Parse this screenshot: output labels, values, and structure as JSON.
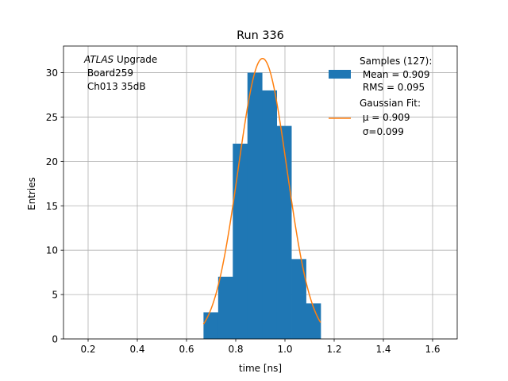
{
  "chart_data": {
    "type": "bar",
    "title": "Run 336",
    "xlabel": "time [ns]",
    "ylabel": "Entries",
    "xlim": [
      0.1,
      1.7
    ],
    "ylim": [
      0,
      33
    ],
    "grid": true,
    "xticks": [
      0.2,
      0.4,
      0.6,
      0.8,
      1.0,
      1.2,
      1.4,
      1.6
    ],
    "xtick_labels": [
      "0.2",
      "0.4",
      "0.6",
      "0.8",
      "1.0",
      "1.2",
      "1.4",
      "1.6"
    ],
    "yticks": [
      0,
      5,
      10,
      15,
      20,
      25,
      30
    ],
    "ytick_labels": [
      "0",
      "5",
      "10",
      "15",
      "20",
      "25",
      "30"
    ],
    "annotation": {
      "italic": "ATLAS",
      "line1_rest": " Upgrade",
      "line2": " Board259",
      "line3": " Ch013 35dB"
    },
    "histogram": {
      "bin_edges": [
        0.669,
        0.7285,
        0.788,
        0.8475,
        0.907,
        0.9665,
        1.026,
        1.0855,
        1.145
      ],
      "counts": [
        3,
        7,
        22,
        30,
        28,
        24,
        9,
        4
      ],
      "color": "#1f77b4"
    },
    "fit": {
      "type": "gaussian",
      "mu": 0.909,
      "sigma": 0.099,
      "peak": 31.6,
      "x_range": [
        0.669,
        1.145
      ],
      "color": "#ff7f0e"
    },
    "legend": {
      "position": "upper right",
      "samples": [
        "Samples (127):",
        " Mean = 0.909",
        " RMS = 0.095"
      ],
      "fit": [
        "Gaussian Fit:",
        " μ = 0.909",
        " σ=0.099"
      ]
    }
  }
}
